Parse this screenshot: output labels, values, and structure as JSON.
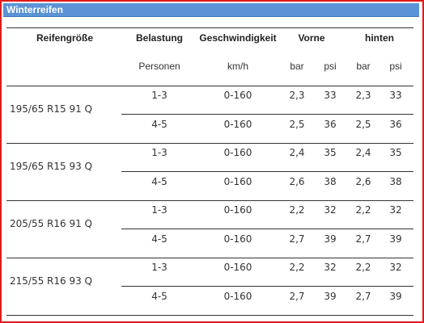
{
  "title": "Winterreifen",
  "headers": {
    "reifengroesse": "Reifengröße",
    "belastung": "Belastung",
    "geschwindigkeit": "Geschwindigkeit",
    "vorne": "Vorne",
    "hinten": "hinten"
  },
  "subheaders": {
    "personen": "Personen",
    "kmh": "km/h",
    "vorne_bar": "bar",
    "vorne_psi": "psi",
    "hinten_bar": "bar",
    "hinten_psi": "psi"
  },
  "groups": [
    {
      "tire": "195/65 R15 91 Q",
      "rows": [
        {
          "personen": "1-3",
          "speed": "0-160",
          "v_bar": "2,3",
          "v_psi": "33",
          "h_bar": "2,3",
          "h_psi": "33"
        },
        {
          "personen": "4-5",
          "speed": "0-160",
          "v_bar": "2,5",
          "v_psi": "36",
          "h_bar": "2,5",
          "h_psi": "36"
        }
      ]
    },
    {
      "tire": "195/65 R15 93 Q",
      "rows": [
        {
          "personen": "1-3",
          "speed": "0-160",
          "v_bar": "2,4",
          "v_psi": "35",
          "h_bar": "2,4",
          "h_psi": "35"
        },
        {
          "personen": "4-5",
          "speed": "0-160",
          "v_bar": "2,6",
          "v_psi": "38",
          "h_bar": "2,6",
          "h_psi": "38"
        }
      ]
    },
    {
      "tire": "205/55 R16 91 Q",
      "rows": [
        {
          "personen": "1-3",
          "speed": "0-160",
          "v_bar": "2,2",
          "v_psi": "32",
          "h_bar": "2,2",
          "h_psi": "32"
        },
        {
          "personen": "4-5",
          "speed": "0-160",
          "v_bar": "2,7",
          "v_psi": "39",
          "h_bar": "2,7",
          "h_psi": "39"
        }
      ]
    },
    {
      "tire": "215/55 R16 93 Q",
      "rows": [
        {
          "personen": "1-3",
          "speed": "0-160",
          "v_bar": "2,2",
          "v_psi": "32",
          "h_bar": "2,2",
          "h_psi": "32"
        },
        {
          "personen": "4-5",
          "speed": "0-160",
          "v_bar": "2,7",
          "v_psi": "39",
          "h_bar": "2,7",
          "h_psi": "39"
        }
      ]
    }
  ]
}
